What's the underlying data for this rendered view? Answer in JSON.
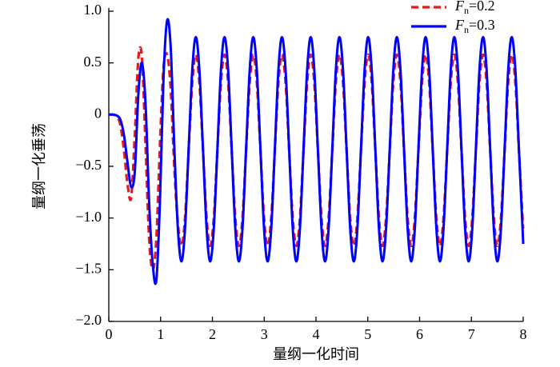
{
  "chart_data": {
    "type": "line",
    "xlabel": "量纲一化时间",
    "ylabel": "量纲一化垂荡",
    "xlim": [
      0,
      8
    ],
    "ylim": [
      -2,
      1
    ],
    "xticks": [
      0,
      1,
      2,
      3,
      4,
      5,
      6,
      7,
      8
    ],
    "yticks": [
      {
        "value": 1,
        "label": "1.0"
      },
      {
        "value": 0.5,
        "label": "0.5"
      },
      0,
      {
        "value": -0.5,
        "label": "−0.5"
      },
      {
        "value": -1,
        "label": "−1.0"
      },
      {
        "value": -1.5,
        "label": "−1.5"
      },
      {
        "value": -2,
        "label": "−2.0"
      }
    ],
    "legend": "top-right",
    "x": [
      0,
      0.017,
      0.086,
      0.155,
      0.224,
      0.294,
      0.363,
      0.432,
      0.502,
      0.571,
      0.64,
      0.71,
      0.779,
      0.848,
      0.918,
      0.987,
      1.056,
      1.126,
      1.195,
      1.264,
      1.333,
      1.403,
      1.472,
      1.541,
      1.611,
      1.68,
      1.749,
      1.819,
      1.888,
      1.957,
      2.027,
      2.096,
      2.165,
      2.234,
      2.304,
      2.373,
      2.442,
      2.512,
      2.581,
      2.65,
      2.72,
      2.789,
      2.858,
      2.928,
      2.997,
      3.066,
      3.136,
      3.205,
      3.274,
      3.343,
      3.413,
      3.482,
      3.551,
      3.621,
      3.69,
      3.759,
      3.829,
      3.898,
      3.967,
      4.037,
      4.106,
      4.175,
      4.244,
      4.314,
      4.383,
      4.452,
      4.522,
      4.591,
      4.66,
      4.73,
      4.799,
      4.868,
      4.938,
      5.007,
      5.076,
      5.146,
      5.215,
      5.284,
      5.353,
      5.423,
      5.492,
      5.561,
      5.631,
      5.7,
      5.769,
      5.839,
      5.908,
      5.977,
      6.047,
      6.116,
      6.185,
      6.254,
      6.324,
      6.393,
      6.462,
      6.532,
      6.601,
      6.67,
      6.74,
      6.809,
      6.878,
      6.948,
      7.017,
      7.086,
      7.155,
      7.225,
      7.294,
      7.363,
      7.433,
      7.502,
      7.571,
      7.641,
      7.71,
      7.779,
      7.849,
      7.918,
      7.987,
      8
    ],
    "series": [
      {
        "name": "Fn=0.2",
        "color": "#e8191c",
        "dashed": true,
        "values": [
          0,
          0,
          0,
          -0.02,
          -0.1,
          -0.35,
          -0.68,
          -0.8,
          -0.2,
          0.55,
          0.55,
          -0.3,
          -1.2,
          -1.5,
          -1.2,
          -0.3,
          0.45,
          0.58,
          0.25,
          -0.5,
          -1.05,
          -1.27,
          -1.0,
          -0.35,
          0.31,
          0.58,
          0.31,
          -0.35,
          -1.0,
          -1.27,
          -1.0,
          -0.35,
          0.31,
          0.58,
          0.31,
          -0.35,
          -1.0,
          -1.27,
          -1.0,
          -0.35,
          0.31,
          0.58,
          0.31,
          -0.35,
          -1.0,
          -1.27,
          -1.0,
          -0.35,
          0.31,
          0.58,
          0.31,
          -0.35,
          -1.0,
          -1.27,
          -1.0,
          -0.35,
          0.31,
          0.58,
          0.31,
          -0.35,
          -1.0,
          -1.27,
          -1.0,
          -0.35,
          0.31,
          0.58,
          0.31,
          -0.35,
          -1.0,
          -1.27,
          -1.0,
          -0.35,
          0.31,
          0.58,
          0.31,
          -0.35,
          -1.0,
          -1.27,
          -1.0,
          -0.35,
          0.31,
          0.58,
          0.31,
          -0.35,
          -1.0,
          -1.27,
          -1.0,
          -0.35,
          0.31,
          0.58,
          0.31,
          -0.35,
          -1.0,
          -1.27,
          -1.0,
          -0.35,
          0.31,
          0.58,
          0.31,
          -0.35,
          -1.0,
          -1.27,
          -1.0,
          -0.35,
          0.31,
          0.58,
          0.31,
          -0.35,
          -1.0,
          -1.27,
          -1.0,
          -0.35,
          0.31,
          0.58,
          0.31,
          -0.35,
          -1.0,
          -1.1
        ]
      },
      {
        "name": "Fn=0.3",
        "color": "#0000ff",
        "dashed": false,
        "values": [
          0,
          0,
          0,
          -0.01,
          -0.05,
          -0.2,
          -0.47,
          -0.7,
          -0.55,
          0.2,
          0.5,
          0.1,
          -0.85,
          -1.45,
          -1.6,
          -0.85,
          0.35,
          0.91,
          0.65,
          -0.3,
          -1.1,
          -1.42,
          -1.1,
          -0.34,
          0.43,
          0.75,
          0.43,
          -0.34,
          -1.1,
          -1.42,
          -1.1,
          -0.34,
          0.43,
          0.75,
          0.43,
          -0.34,
          -1.1,
          -1.42,
          -1.1,
          -0.34,
          0.43,
          0.75,
          0.43,
          -0.34,
          -1.1,
          -1.42,
          -1.1,
          -0.34,
          0.43,
          0.75,
          0.43,
          -0.34,
          -1.1,
          -1.42,
          -1.1,
          -0.34,
          0.43,
          0.75,
          0.43,
          -0.34,
          -1.1,
          -1.42,
          -1.1,
          -0.34,
          0.43,
          0.75,
          0.43,
          -0.34,
          -1.1,
          -1.42,
          -1.1,
          -0.34,
          0.43,
          0.75,
          0.43,
          -0.34,
          -1.1,
          -1.42,
          -1.1,
          -0.34,
          0.43,
          0.75,
          0.43,
          -0.34,
          -1.1,
          -1.42,
          -1.1,
          -0.34,
          0.43,
          0.75,
          0.43,
          -0.34,
          -1.1,
          -1.42,
          -1.1,
          -0.34,
          0.43,
          0.75,
          0.43,
          -0.34,
          -1.1,
          -1.42,
          -1.1,
          -0.34,
          0.43,
          0.75,
          0.43,
          -0.34,
          -1.1,
          -1.42,
          -1.1,
          -0.34,
          0.43,
          0.75,
          0.43,
          -0.34,
          -1.1,
          -1.25
        ]
      }
    ]
  }
}
